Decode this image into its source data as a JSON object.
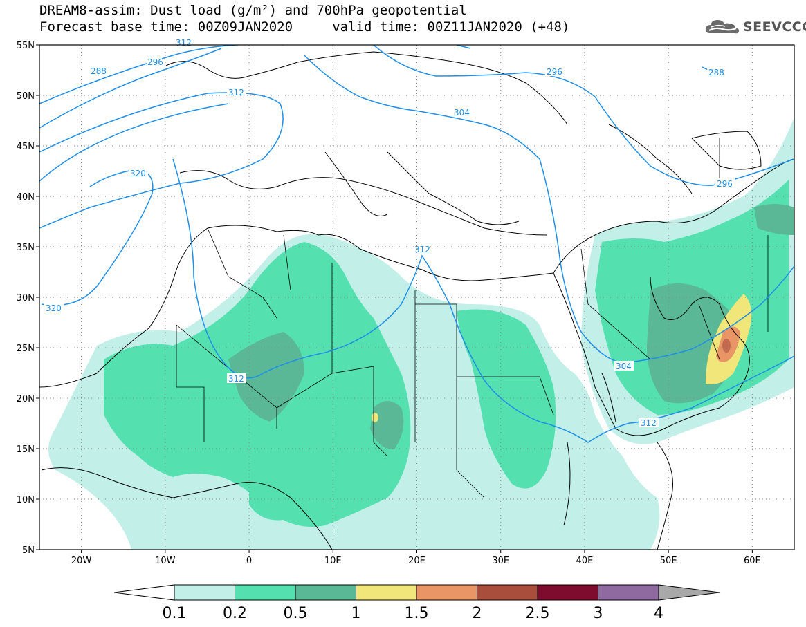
{
  "title": {
    "line1": "DREAM8-assim: Dust load (g/m²) and 700hPa geopotential",
    "line2": "Forecast base time: 00Z09JAN2020     valid time: 00Z11JAN2020 (+48)"
  },
  "logo": {
    "text": "SEEVCCC",
    "icon": "cloud-logo-icon"
  },
  "map": {
    "lon_range": [
      -25,
      65
    ],
    "lat_range": [
      5,
      55
    ],
    "lat_ticks": [
      "5N",
      "10N",
      "15N",
      "20N",
      "25N",
      "30N",
      "35N",
      "40N",
      "45N",
      "50N",
      "55N"
    ],
    "lon_ticks": [
      "20W",
      "10W",
      "0",
      "10E",
      "20E",
      "30E",
      "40E",
      "50E",
      "60E"
    ],
    "contour_color": "#1f8fe8",
    "contour_labels": [
      "288",
      "296",
      "312",
      "320",
      "320",
      "312",
      "304",
      "296",
      "288",
      "296",
      "312",
      "312",
      "304",
      "312"
    ]
  },
  "colorbar": {
    "labels": [
      "0.1",
      "0.2",
      "0.5",
      "1",
      "1.5",
      "2",
      "2.5",
      "3",
      "4"
    ],
    "colors": [
      "#c2efe8",
      "#55e0b0",
      "#5ab896",
      "#f1e67a",
      "#ea9566",
      "#a94d3c",
      "#7d0c2e",
      "#8f6aa1"
    ],
    "under_color": "#ffffff",
    "over_color": "#a8a8a8"
  }
}
